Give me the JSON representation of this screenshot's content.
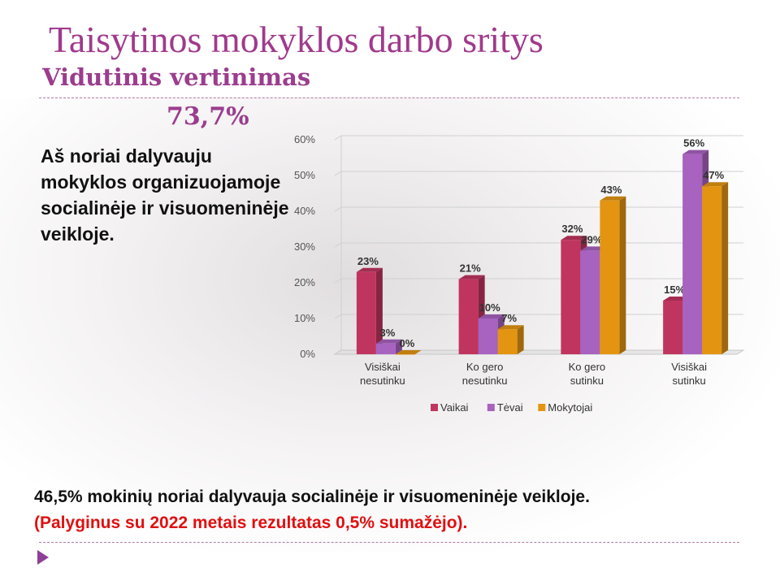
{
  "slide": {
    "title": "Taisytinos mokyklos darbo sritys",
    "subtitle": "Vidutinis vertinimas",
    "average": "73,7%",
    "statement": "Aš noriai dalyvauju mokyklos organizuojamoje socialinėje ir visuomeninėje veikloje.",
    "footer_line1": "46,5% mokinių noriai dalyvauja socialinėje ir visuomeninėje veikloje.",
    "footer_line2": "(Palyginus su 2022 metais rezultatas 0,5% sumažėjo).",
    "accent_color": "#9b3d8e",
    "highlight_color": "#e01010"
  },
  "chart_data": {
    "type": "bar",
    "title": "",
    "xlabel": "",
    "ylabel": "",
    "categories": [
      [
        "Visiškai",
        "nesutinku"
      ],
      [
        "Ko gero",
        "nesutinku"
      ],
      [
        "Ko gero",
        "sutinku"
      ],
      [
        "Visiškai",
        "sutinku"
      ]
    ],
    "ylim": [
      0,
      60
    ],
    "yticks": [
      0,
      10,
      20,
      30,
      40,
      50,
      60
    ],
    "ytick_labels": [
      "0%",
      "10%",
      "20%",
      "30%",
      "40%",
      "50%",
      "60%"
    ],
    "grid": true,
    "legend_position": "bottom",
    "series": [
      {
        "name": "Vaikai",
        "color": "#c0355f",
        "values": [
          23,
          21,
          32,
          15
        ],
        "labels": [
          "23%",
          "21%",
          "32%",
          "15%"
        ]
      },
      {
        "name": "Tėvai",
        "color": "#a862c0",
        "values": [
          3,
          10,
          29,
          56
        ],
        "labels": [
          "3%",
          "10%",
          "29%",
          "56%"
        ]
      },
      {
        "name": "Mokytojai",
        "color": "#e39512",
        "values": [
          0,
          7,
          43,
          47
        ],
        "labels": [
          "0%",
          "7%",
          "43%",
          "47%"
        ]
      }
    ]
  }
}
